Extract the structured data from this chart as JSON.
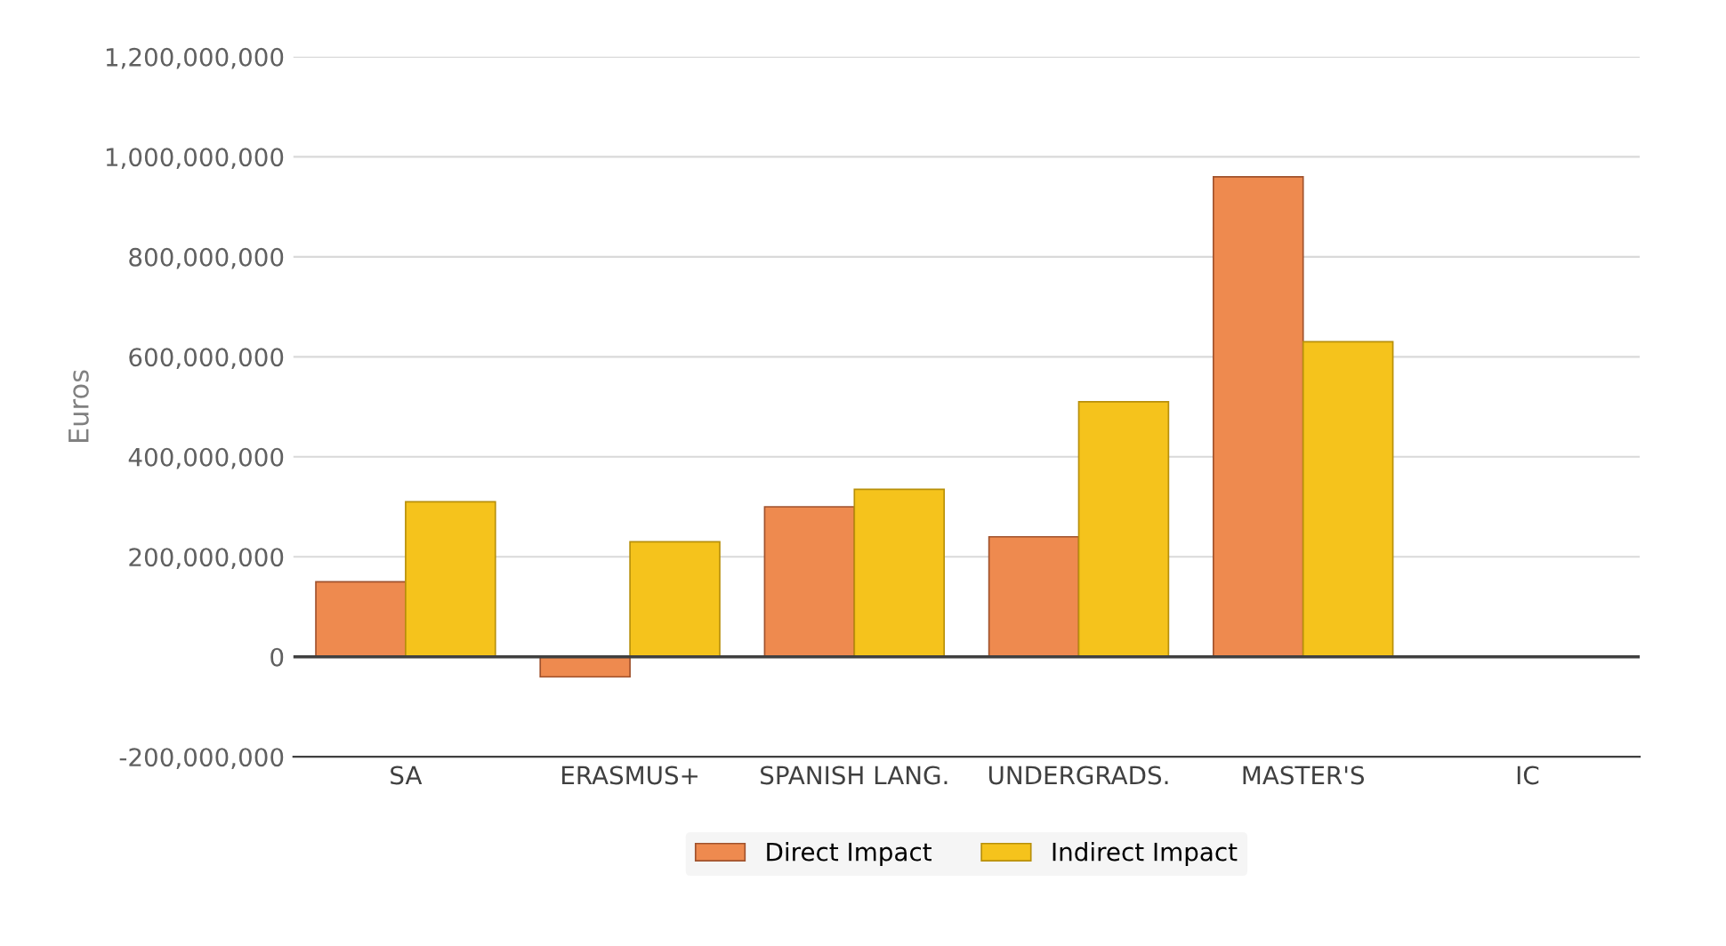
{
  "chart_data": {
    "type": "bar",
    "ylabel": "Euros",
    "categories": [
      "SA",
      "ERASMUS+",
      "SPANISH LANG.",
      "UNDERGRADS.",
      "MASTER'S",
      "IC"
    ],
    "series": [
      {
        "name": "Direct Impact",
        "color": "#ee8a4f",
        "values": [
          150000000,
          -40000000,
          300000000,
          240000000,
          960000000,
          null
        ]
      },
      {
        "name": "Indirect Impact",
        "color": "#f5c31c",
        "values": [
          310000000,
          230000000,
          335000000,
          510000000,
          630000000,
          null
        ]
      }
    ],
    "ylim": [
      -200000000,
      1200000000
    ],
    "yticks": [
      {
        "value": -200000000,
        "label": "-200,000,000"
      },
      {
        "value": 0,
        "label": "0"
      },
      {
        "value": 200000000,
        "label": "200,000,000"
      },
      {
        "value": 400000000,
        "label": "400,000,000"
      },
      {
        "value": 600000000,
        "label": "600,000,000"
      },
      {
        "value": 800000000,
        "label": "800,000,000"
      },
      {
        "value": 1000000000,
        "label": "1,000,000,000"
      },
      {
        "value": 1200000000,
        "label": "1,200,000,000"
      }
    ],
    "grid": "y",
    "legend": "bottom"
  }
}
